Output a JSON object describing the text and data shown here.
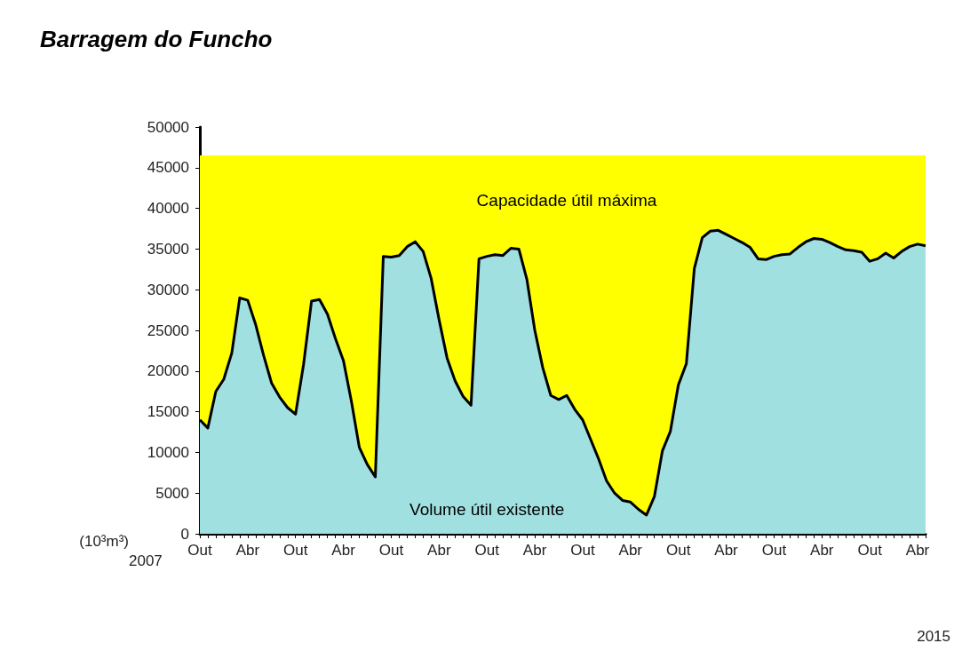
{
  "chart_data": {
    "type": "area",
    "title": "Barragem do Funcho",
    "ylabel": "(10³m³)",
    "annotations": [
      "2007",
      "2015"
    ],
    "categories": [
      "Out",
      null,
      null,
      null,
      null,
      null,
      "Abr",
      null,
      null,
      null,
      null,
      null,
      "Out",
      null,
      null,
      null,
      null,
      null,
      "Abr",
      null,
      null,
      null,
      null,
      null,
      "Out",
      null,
      null,
      null,
      null,
      null,
      "Abr",
      null,
      null,
      null,
      null,
      null,
      "Out",
      null,
      null,
      null,
      null,
      null,
      "Abr",
      null,
      null,
      null,
      null,
      null,
      "Out",
      null,
      null,
      null,
      null,
      null,
      "Abr",
      null,
      null,
      null,
      null,
      null,
      "Out",
      null,
      null,
      null,
      null,
      null,
      "Abr",
      null,
      null,
      null,
      null,
      null,
      "Out",
      null,
      null,
      null,
      null,
      null,
      "Abr",
      null,
      null,
      null,
      null,
      null,
      "Out",
      null,
      null,
      null,
      null,
      null,
      "Abr",
      null
    ],
    "series": [
      {
        "name": "Capacidade útil máxima",
        "color": "#ffff00",
        "values": [
          46500,
          46500,
          46500,
          46500,
          46500,
          46500,
          46500,
          46500,
          46500,
          46500,
          46500,
          46500,
          46500,
          46500,
          46500,
          46500,
          46500,
          46500,
          46500,
          46500,
          46500,
          46500,
          46500,
          46500,
          46500,
          46500,
          46500,
          46500,
          46500,
          46500,
          46500,
          46500,
          46500,
          46500,
          46500,
          46500,
          46500,
          46500,
          46500,
          46500,
          46500,
          46500,
          46500,
          46500,
          46500,
          46500,
          46500,
          46500,
          46500,
          46500,
          46500,
          46500,
          46500,
          46500,
          46500,
          46500,
          46500,
          46500,
          46500,
          46500,
          46500,
          46500,
          46500,
          46500,
          46500,
          46500,
          46500,
          46500,
          46500,
          46500,
          46500,
          46500,
          46500,
          46500,
          46500,
          46500,
          46500,
          46500,
          46500,
          46500,
          46500,
          46500,
          46500,
          46500,
          46500,
          46500,
          46500,
          46500,
          46500,
          46500,
          46500,
          46500
        ]
      },
      {
        "name": "Volume útil existente",
        "color": "#a0e0e0",
        "values": [
          14000,
          13000,
          17500,
          19000,
          22200,
          29000,
          28700,
          25700,
          21900,
          18500,
          16800,
          15500,
          14700,
          20800,
          28600,
          28800,
          27000,
          24000,
          21300,
          16300,
          10600,
          8500,
          7000,
          34100,
          34000,
          34200,
          35300,
          35900,
          34700,
          31400,
          26300,
          21600,
          18800,
          16900,
          15800,
          33800,
          34100,
          34300,
          34200,
          35100,
          35000,
          31300,
          25000,
          20400,
          17000,
          16500,
          17000,
          15300,
          14000,
          11600,
          9200,
          6500,
          5000,
          4100,
          3900,
          3000,
          2300,
          4600,
          10200,
          12600,
          18300,
          20900,
          32600,
          36400,
          37200,
          37300,
          36800,
          36300,
          35800,
          35200,
          33800,
          33700,
          34100,
          34300,
          34400,
          35200,
          35900,
          36300,
          36200,
          35800,
          35300,
          34900,
          34800,
          34600,
          33500,
          33800,
          34500,
          33900,
          34700,
          35300,
          35600,
          35400
        ]
      }
    ],
    "ylim": [
      0,
      50000
    ],
    "yticks": [
      0,
      5000,
      10000,
      15000,
      20000,
      25000,
      30000,
      35000,
      40000,
      45000,
      50000
    ],
    "grid": false,
    "legend": false,
    "marker": "none",
    "line_style": "solid"
  }
}
